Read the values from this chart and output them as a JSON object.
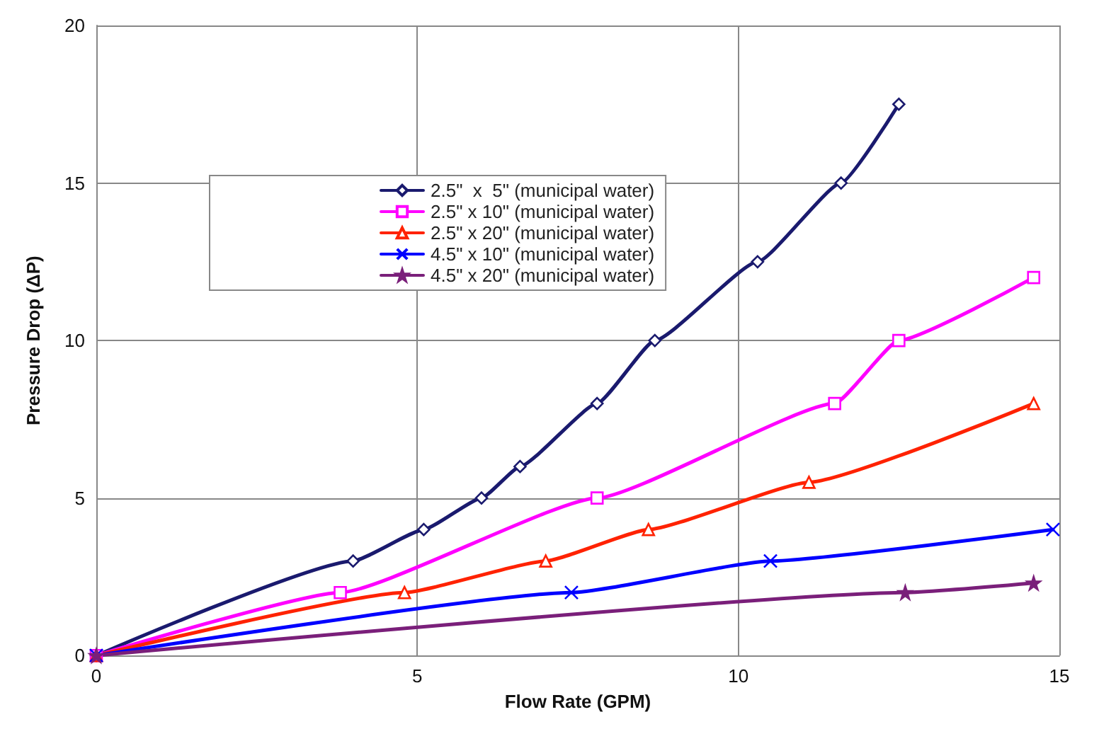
{
  "chart_data": {
    "type": "line",
    "xlabel": "Flow Rate (GPM)",
    "ylabel": "Pressure Drop (ΔP)",
    "xlim": [
      0,
      15
    ],
    "xticks": [
      0,
      5,
      10,
      15
    ],
    "ylim": [
      0,
      20
    ],
    "yticks": [
      0,
      5,
      10,
      15,
      20
    ],
    "grid": true,
    "legend": "top left",
    "series": [
      {
        "name": "2.5\"  x  5\" (municipal water)",
        "color": "#1a1a6e",
        "marker": "diamond",
        "x": [
          0,
          4.0,
          5.1,
          6.0,
          6.6,
          7.8,
          8.7,
          10.3,
          11.6,
          12.5
        ],
        "values": [
          0,
          3,
          4,
          5,
          6,
          8,
          10,
          12.5,
          15,
          17.5
        ]
      },
      {
        "name": "2.5\" x 10\" (municipal water)",
        "color": "#ff00ff",
        "marker": "square",
        "x": [
          0,
          3.8,
          7.8,
          11.5,
          12.5,
          14.6
        ],
        "values": [
          0,
          2,
          5,
          8,
          10,
          12
        ]
      },
      {
        "name": "2.5\" x 20\" (municipal water)",
        "color": "#ff2200",
        "marker": "triangle",
        "x": [
          0,
          4.8,
          7.0,
          8.6,
          11.1,
          14.6
        ],
        "values": [
          0,
          2,
          3,
          4,
          5.5,
          8
        ]
      },
      {
        "name": "4.5\" x 10\" (municipal water)",
        "color": "#0000ff",
        "marker": "cross",
        "x": [
          0,
          7.4,
          10.5,
          14.9
        ],
        "values": [
          0,
          2,
          3,
          4
        ]
      },
      {
        "name": "4.5\" x 20\" (municipal water)",
        "color": "#7a1f7a",
        "marker": "star",
        "x": [
          0,
          12.6,
          14.6
        ],
        "values": [
          0,
          2,
          2.3
        ]
      }
    ]
  }
}
